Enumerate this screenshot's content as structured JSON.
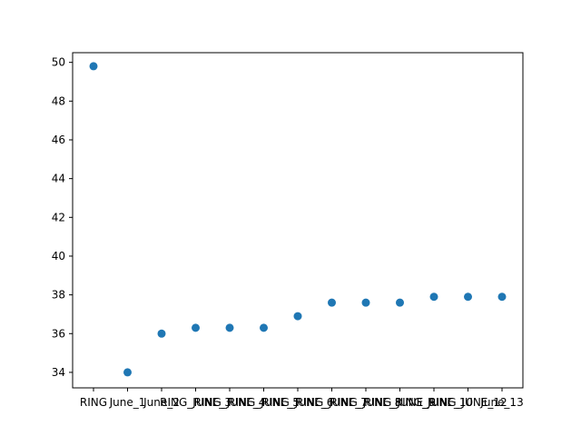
{
  "chart_data": {
    "type": "scatter",
    "title": "",
    "xlabel": "",
    "ylabel": "",
    "categories": [
      "RING",
      "June_1",
      "June_2",
      "RING_JUNE_3",
      "RING_JUNE_4",
      "RING_JUNE_5",
      "RING_JUNE_6",
      "RING_JUNE_7",
      "RING_JUNE_8",
      "RING_JUNE_9",
      "RING_JUNE_10",
      "RING_JUNE_12",
      "June_13"
    ],
    "series": [
      {
        "values": [
          49.8,
          34.0,
          36.0,
          36.3,
          36.3,
          36.3,
          36.9,
          37.6,
          37.6,
          37.6,
          37.9,
          37.9,
          37.9
        ]
      }
    ],
    "ylim": [
      33.2,
      50.5
    ],
    "yticks": [
      34,
      36,
      38,
      40,
      42,
      44,
      46,
      48,
      50
    ],
    "grid": false,
    "legend": "none",
    "colors": {
      "marker": "#1f77b4",
      "axis": "#000000",
      "background": "#ffffff"
    }
  }
}
